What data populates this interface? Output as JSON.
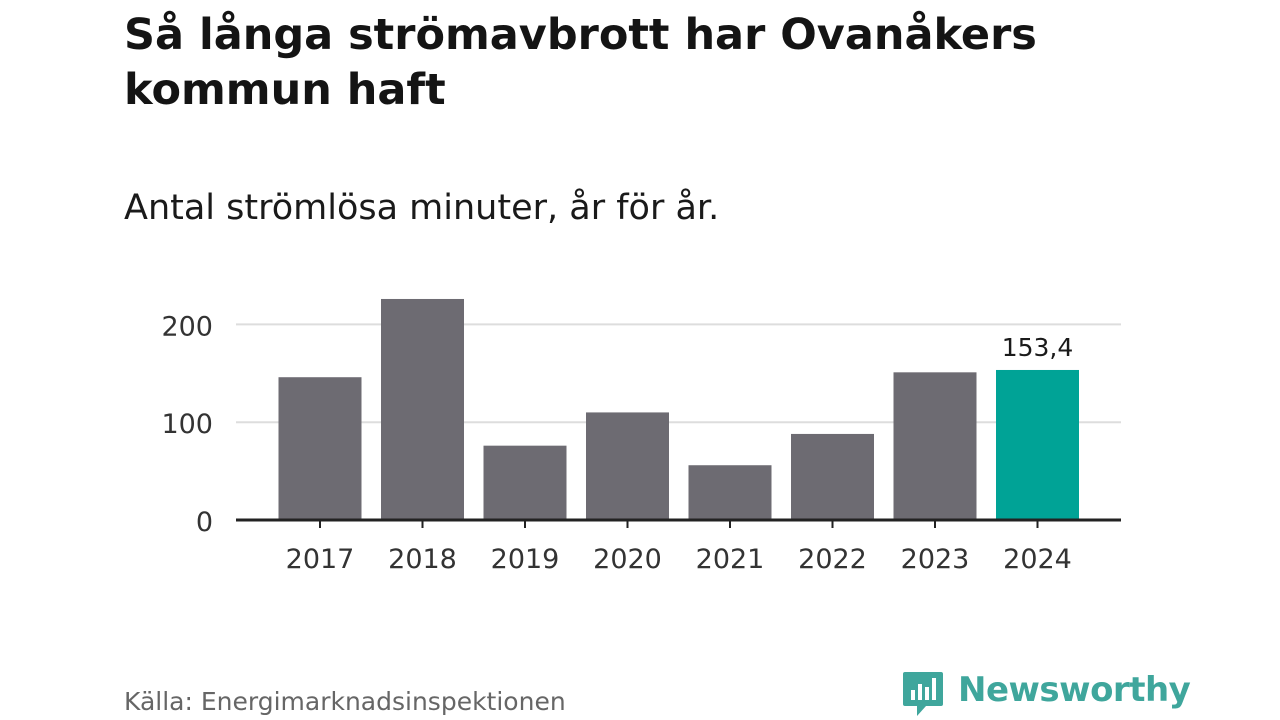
{
  "header": {
    "title": "Så långa strömavbrott har Ovanåkers kommun haft",
    "subtitle": "Antal strömlösa minuter, år för år."
  },
  "footer": {
    "source": "Källa: Energimarknadsinspektionen",
    "brand": "Newsworthy",
    "brand_icon": "bar-chart-speech-bubble-icon"
  },
  "colors": {
    "bar": "#6d6b72",
    "highlight": "#00a396",
    "grid": "#dddddd",
    "axis": "#222222",
    "brand": "#3fa69c"
  },
  "chart_data": {
    "type": "bar",
    "title": "Så långa strömavbrott har Ovanåkers kommun haft",
    "subtitle": "Antal strömlösa minuter, år för år.",
    "categories": [
      "2017",
      "2018",
      "2019",
      "2020",
      "2021",
      "2022",
      "2023",
      "2024"
    ],
    "values": [
      146,
      226,
      76,
      110,
      56,
      88,
      151,
      153.4
    ],
    "highlight_index": 7,
    "data_labels": [
      {
        "index": 7,
        "text": "153,4"
      }
    ],
    "yticks": [
      0,
      100,
      200
    ],
    "ylim": [
      0,
      240
    ],
    "xlabel": "",
    "ylabel": "",
    "grid": true,
    "legend": "none"
  }
}
